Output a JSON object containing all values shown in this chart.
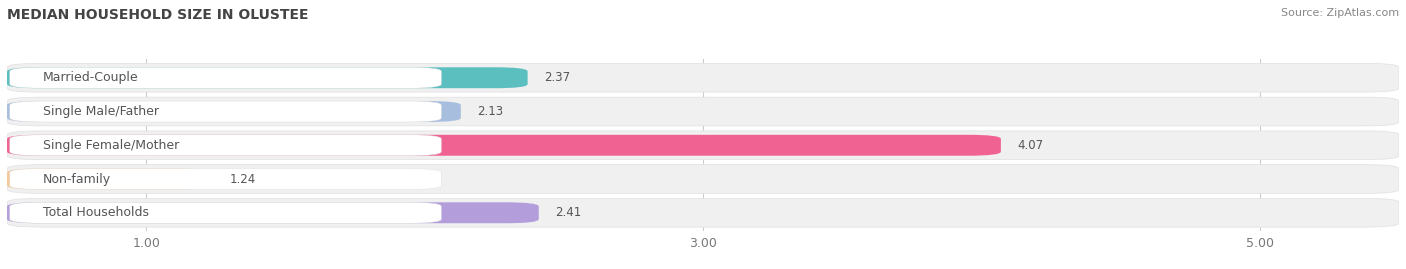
{
  "title": "MEDIAN HOUSEHOLD SIZE IN OLUSTEE",
  "source": "Source: ZipAtlas.com",
  "categories": [
    "Married-Couple",
    "Single Male/Father",
    "Single Female/Mother",
    "Non-family",
    "Total Households"
  ],
  "values": [
    2.37,
    2.13,
    4.07,
    1.24,
    2.41
  ],
  "bar_colors": [
    "#5bbfc0",
    "#a8bede",
    "#f06292",
    "#f5c99a",
    "#b39ddb"
  ],
  "xlim_min": 0.5,
  "xlim_max": 5.5,
  "xticks": [
    1.0,
    3.0,
    5.0
  ],
  "xticklabels": [
    "1.00",
    "3.00",
    "5.00"
  ],
  "title_fontsize": 10,
  "source_fontsize": 8,
  "label_fontsize": 9,
  "value_fontsize": 8.5,
  "bar_height": 0.62,
  "background_color": "#ffffff",
  "bar_bg_color": "#f0f0f0",
  "bar_row_bg": "#f8f8f8",
  "label_bg_color": "#ffffff",
  "grid_color": "#cccccc",
  "text_color": "#555555",
  "title_color": "#444444"
}
